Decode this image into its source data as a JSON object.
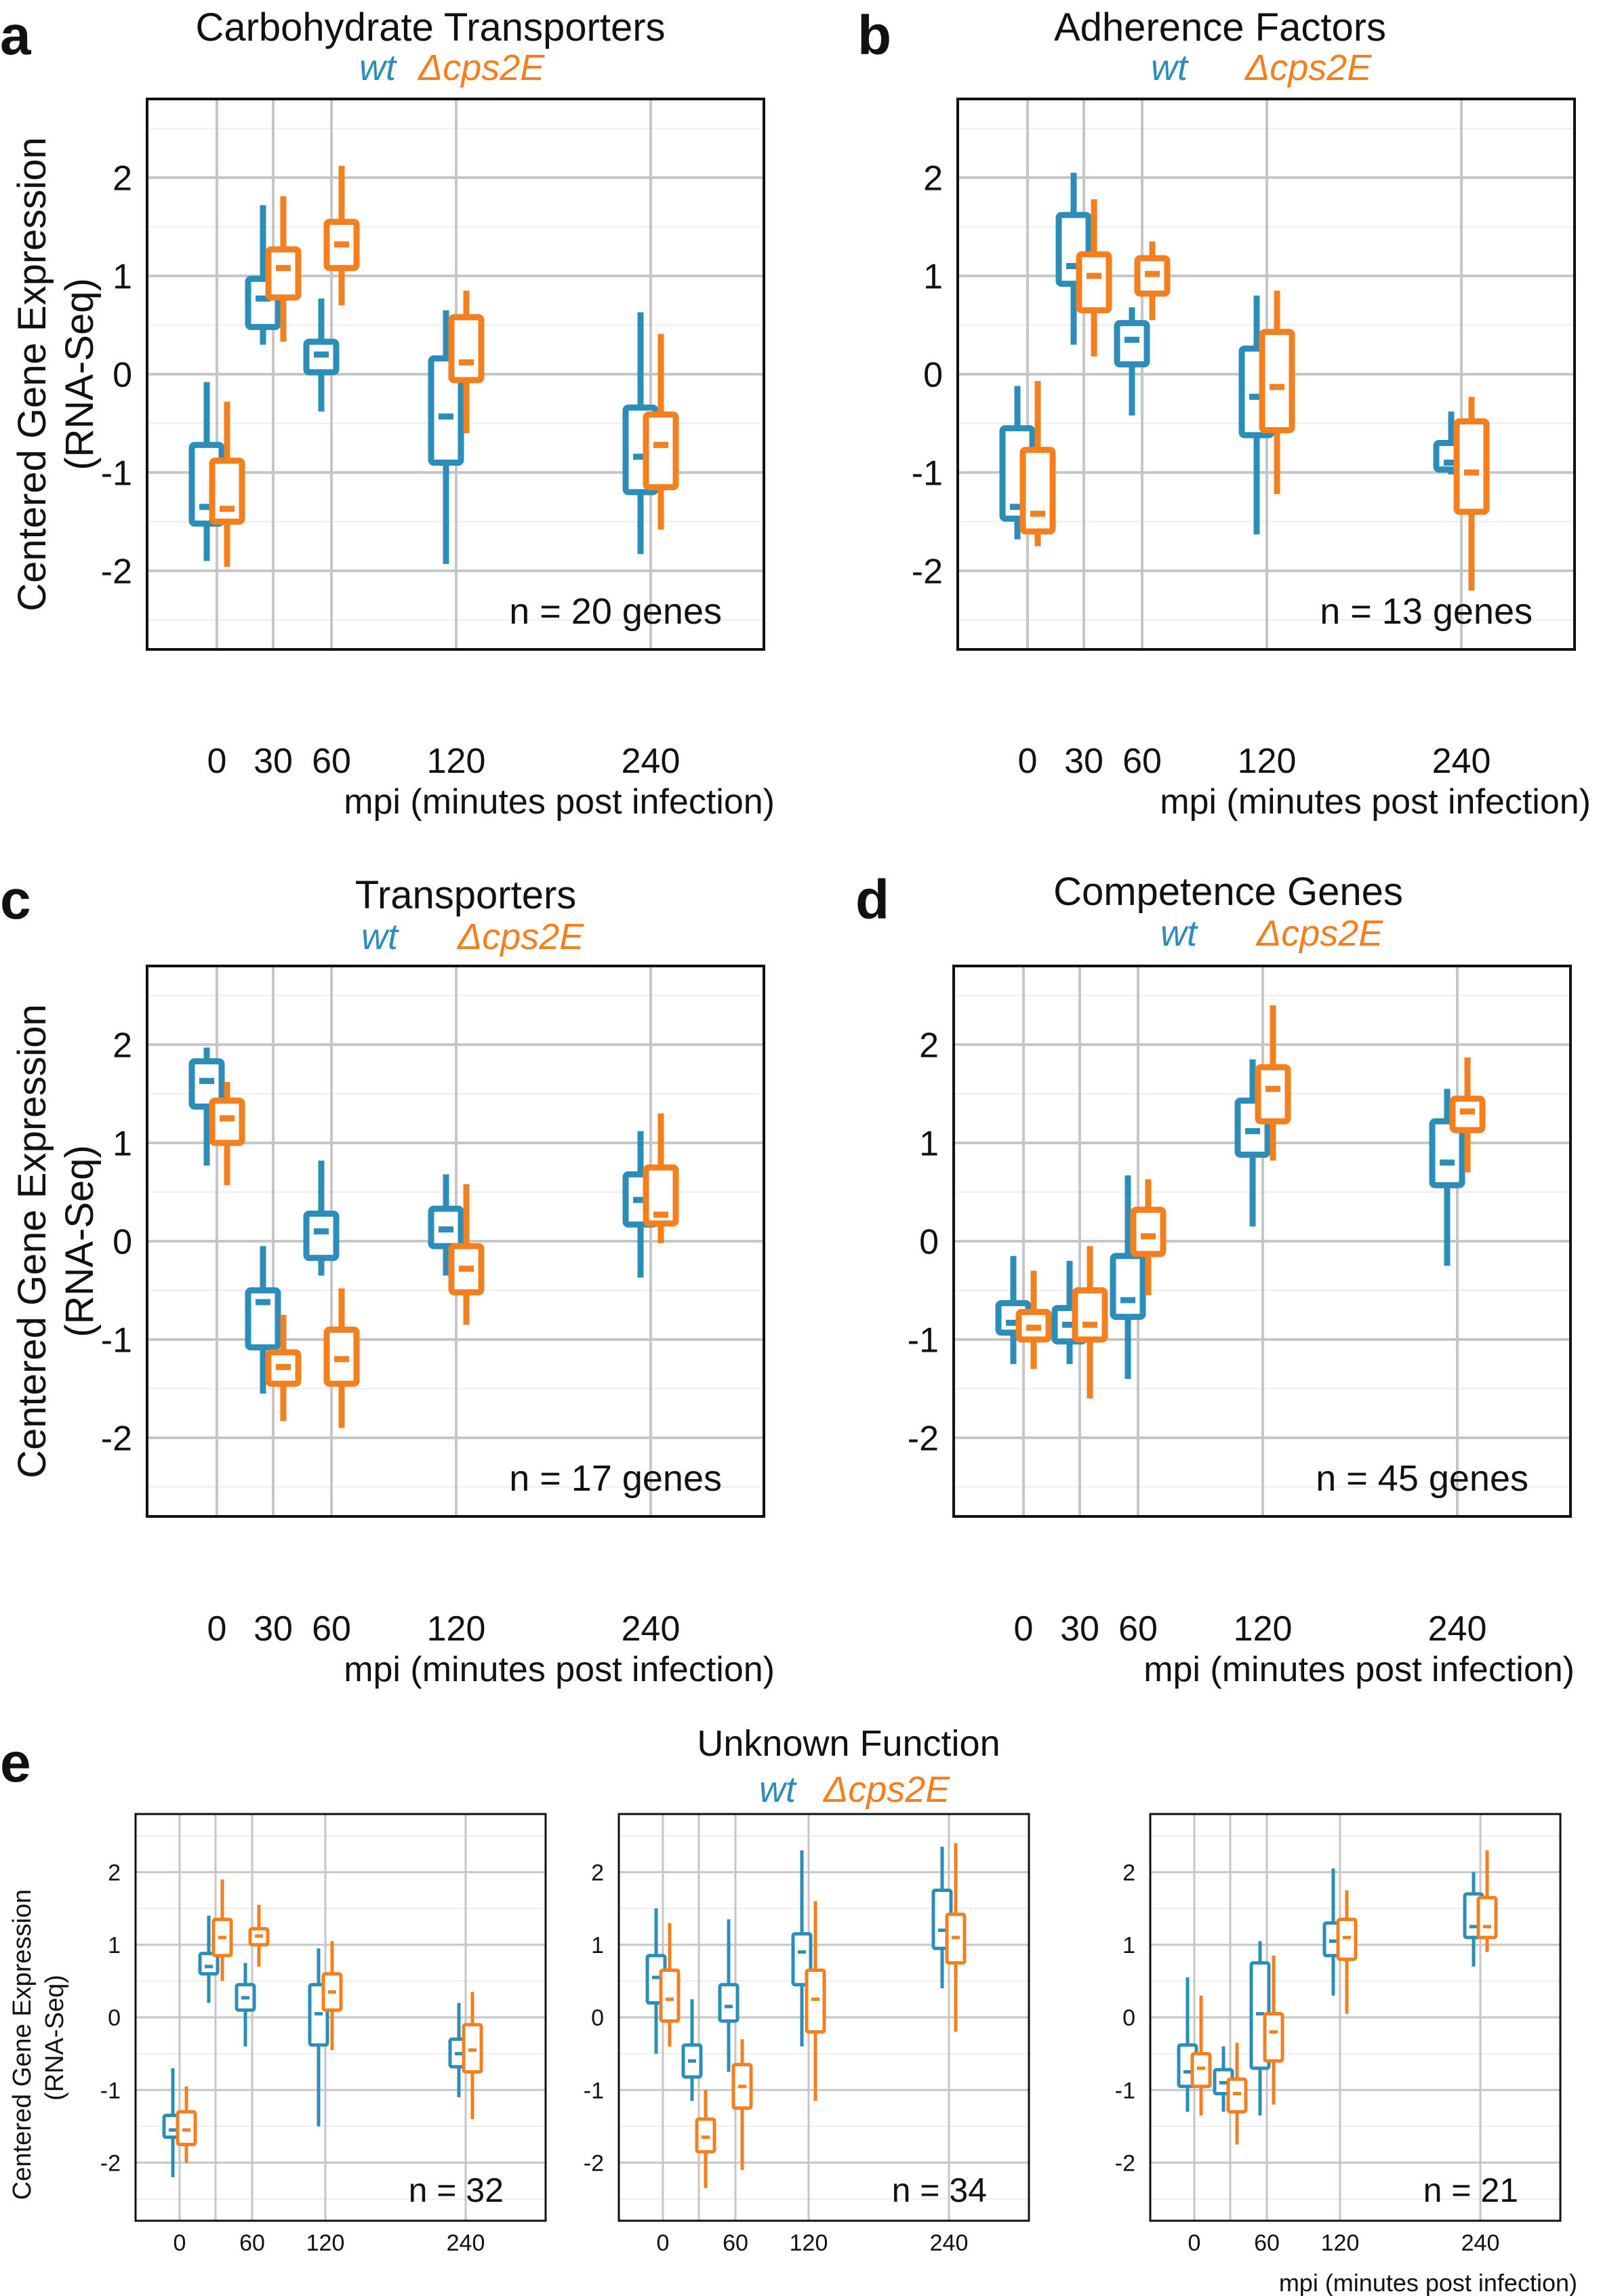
{
  "colors": {
    "wt": "#2b8db8",
    "mutant": "#f47f1f",
    "grid": "#c6c6c6",
    "gridMinor": "#eeeeee",
    "frame": "#111111",
    "text": "#111111"
  },
  "legend": {
    "wt": "wt",
    "mutant": "Δcps2E"
  },
  "common": {
    "ylabel": "Centered Gene Expression",
    "ylabel2": "(RNA-Seq)",
    "xlabel": "mpi (minutes post infection)",
    "yticks": [
      -2,
      -1,
      0,
      1,
      2
    ],
    "ylim": [
      -2.8,
      2.8
    ]
  },
  "panel_e": {
    "letter": "e",
    "title": "Unknown Function"
  },
  "chart_data": [
    {
      "id": "a",
      "type": "box",
      "letter": "a",
      "title": "Carbohydrate Transporters",
      "note": "n =  20 genes",
      "xticks": [
        "0",
        "30",
        "60",
        "120",
        "240"
      ],
      "series": [
        {
          "name": "wt",
          "groups": [
            {
              "x": "0",
              "min": -1.9,
              "q1": -1.52,
              "median": -1.35,
              "q3": -0.72,
              "max": -0.08
            },
            {
              "x": "30",
              "min": 0.3,
              "q1": 0.48,
              "median": 0.77,
              "q3": 0.97,
              "max": 1.72
            },
            {
              "x": "60",
              "min": -0.38,
              "q1": 0.02,
              "median": 0.2,
              "q3": 0.33,
              "max": 0.77
            },
            {
              "x": "120",
              "min": -1.93,
              "q1": -0.9,
              "median": -0.43,
              "q3": 0.16,
              "max": 0.65
            },
            {
              "x": "240",
              "min": -1.83,
              "q1": -1.2,
              "median": -0.84,
              "q3": -0.34,
              "max": 0.63
            }
          ]
        },
        {
          "name": "Δcps2E",
          "groups": [
            {
              "x": "0",
              "min": -1.96,
              "q1": -1.5,
              "median": -1.37,
              "q3": -0.88,
              "max": -0.28
            },
            {
              "x": "30",
              "min": 0.33,
              "q1": 0.78,
              "median": 1.08,
              "q3": 1.27,
              "max": 1.81
            },
            {
              "x": "60",
              "min": 0.7,
              "q1": 1.08,
              "median": 1.32,
              "q3": 1.55,
              "max": 2.12
            },
            {
              "x": "120",
              "min": -0.6,
              "q1": -0.06,
              "median": 0.12,
              "q3": 0.58,
              "max": 0.85
            },
            {
              "x": "240",
              "min": -1.58,
              "q1": -1.15,
              "median": -0.72,
              "q3": -0.41,
              "max": 0.41
            }
          ]
        }
      ]
    },
    {
      "id": "b",
      "type": "box",
      "letter": "b",
      "title": "Adherence Factors",
      "note": "n = 13 genes",
      "xticks": [
        "0",
        "30",
        "60",
        "120",
        "240"
      ],
      "series": [
        {
          "name": "wt",
          "groups": [
            {
              "x": "0",
              "min": -1.68,
              "q1": -1.47,
              "median": -1.35,
              "q3": -0.55,
              "max": -0.12
            },
            {
              "x": "30",
              "min": 0.3,
              "q1": 0.92,
              "median": 1.1,
              "q3": 1.62,
              "max": 2.05
            },
            {
              "x": "60",
              "min": -0.42,
              "q1": 0.1,
              "median": 0.35,
              "q3": 0.52,
              "max": 0.68
            },
            {
              "x": "120",
              "min": -1.63,
              "q1": -0.62,
              "median": -0.23,
              "q3": 0.26,
              "max": 0.8
            },
            {
              "x": "240",
              "min": -1.02,
              "q1": -0.97,
              "median": -0.9,
              "q3": -0.7,
              "max": -0.38
            }
          ]
        },
        {
          "name": "Δcps2E",
          "groups": [
            {
              "x": "0",
              "min": -1.75,
              "q1": -1.6,
              "median": -1.42,
              "q3": -0.77,
              "max": -0.07
            },
            {
              "x": "30",
              "min": 0.18,
              "q1": 0.65,
              "median": 1.0,
              "q3": 1.22,
              "max": 1.78
            },
            {
              "x": "60",
              "min": 0.55,
              "q1": 0.82,
              "median": 1.02,
              "q3": 1.18,
              "max": 1.35
            },
            {
              "x": "120",
              "min": -1.22,
              "q1": -0.57,
              "median": -0.13,
              "q3": 0.43,
              "max": 0.85
            },
            {
              "x": "240",
              "min": -2.2,
              "q1": -1.4,
              "median": -1.0,
              "q3": -0.48,
              "max": -0.23
            }
          ]
        }
      ]
    },
    {
      "id": "c",
      "type": "box",
      "letter": "c",
      "title": "Transporters",
      "note": "n =  17 genes",
      "xticks": [
        "0",
        "30",
        "60",
        "120",
        "240"
      ],
      "series": [
        {
          "name": "wt",
          "groups": [
            {
              "x": "0",
              "min": 0.77,
              "q1": 1.37,
              "median": 1.63,
              "q3": 1.83,
              "max": 1.97
            },
            {
              "x": "30",
              "min": -1.55,
              "q1": -1.08,
              "median": -0.62,
              "q3": -0.5,
              "max": -0.05
            },
            {
              "x": "60",
              "min": -0.35,
              "q1": -0.17,
              "median": 0.1,
              "q3": 0.28,
              "max": 0.82
            },
            {
              "x": "120",
              "min": -0.35,
              "q1": -0.05,
              "median": 0.12,
              "q3": 0.33,
              "max": 0.68
            },
            {
              "x": "240",
              "min": -0.37,
              "q1": 0.17,
              "median": 0.42,
              "q3": 0.68,
              "max": 1.12
            }
          ]
        },
        {
          "name": "Δcps2E",
          "groups": [
            {
              "x": "0",
              "min": 0.57,
              "q1": 1.0,
              "median": 1.25,
              "q3": 1.43,
              "max": 1.62
            },
            {
              "x": "30",
              "min": -1.83,
              "q1": -1.45,
              "median": -1.28,
              "q3": -1.13,
              "max": -0.75
            },
            {
              "x": "60",
              "min": -1.9,
              "q1": -1.45,
              "median": -1.2,
              "q3": -0.9,
              "max": -0.48
            },
            {
              "x": "120",
              "min": -0.85,
              "q1": -0.52,
              "median": -0.28,
              "q3": -0.05,
              "max": 0.58
            },
            {
              "x": "240",
              "min": -0.02,
              "q1": 0.18,
              "median": 0.27,
              "q3": 0.75,
              "max": 1.3
            }
          ]
        }
      ]
    },
    {
      "id": "d",
      "type": "box",
      "letter": "d",
      "title": "Competence Genes",
      "note": "n =  45 genes",
      "xticks": [
        "0",
        "30",
        "60",
        "120",
        "240"
      ],
      "series": [
        {
          "name": "wt",
          "groups": [
            {
              "x": "0",
              "min": -1.25,
              "q1": -0.93,
              "median": -0.83,
              "q3": -0.63,
              "max": -0.15
            },
            {
              "x": "30",
              "min": -1.25,
              "q1": -1.02,
              "median": -0.85,
              "q3": -0.68,
              "max": -0.2
            },
            {
              "x": "60",
              "min": -1.4,
              "q1": -0.77,
              "median": -0.6,
              "q3": -0.15,
              "max": 0.67
            },
            {
              "x": "120",
              "min": 0.15,
              "q1": 0.88,
              "median": 1.12,
              "q3": 1.43,
              "max": 1.85
            },
            {
              "x": "240",
              "min": -0.25,
              "q1": 0.57,
              "median": 0.8,
              "q3": 1.22,
              "max": 1.55
            }
          ]
        },
        {
          "name": "Δcps2E",
          "groups": [
            {
              "x": "0",
              "min": -1.3,
              "q1": -1.0,
              "median": -0.88,
              "q3": -0.72,
              "max": -0.3
            },
            {
              "x": "30",
              "min": -1.6,
              "q1": -1.0,
              "median": -0.85,
              "q3": -0.5,
              "max": -0.05
            },
            {
              "x": "60",
              "min": -0.55,
              "q1": -0.13,
              "median": 0.05,
              "q3": 0.32,
              "max": 0.63
            },
            {
              "x": "120",
              "min": 0.82,
              "q1": 1.22,
              "median": 1.55,
              "q3": 1.77,
              "max": 2.4
            },
            {
              "x": "240",
              "min": 0.7,
              "q1": 1.13,
              "median": 1.32,
              "q3": 1.45,
              "max": 1.87
            }
          ]
        }
      ]
    },
    {
      "id": "e1",
      "type": "box",
      "title": "",
      "note": "n = 32",
      "xticks": [
        "0",
        "60",
        "120",
        "240"
      ],
      "series": [
        {
          "name": "wt",
          "groups": [
            {
              "x": "0",
              "min": -2.2,
              "q1": -1.65,
              "median": -1.55,
              "q3": -1.35,
              "max": -0.7
            },
            {
              "x": "30",
              "min": 0.2,
              "q1": 0.6,
              "median": 0.7,
              "q3": 0.88,
              "max": 1.4
            },
            {
              "x": "60",
              "min": -0.4,
              "q1": 0.1,
              "median": 0.27,
              "q3": 0.45,
              "max": 0.75
            },
            {
              "x": "120",
              "min": -1.5,
              "q1": -0.38,
              "median": 0.05,
              "q3": 0.45,
              "max": 0.95
            },
            {
              "x": "240",
              "min": -1.1,
              "q1": -0.68,
              "median": -0.5,
              "q3": -0.3,
              "max": 0.2
            }
          ]
        },
        {
          "name": "Δcps2E",
          "groups": [
            {
              "x": "0",
              "min": -2.0,
              "q1": -1.75,
              "median": -1.55,
              "q3": -1.3,
              "max": -0.95
            },
            {
              "x": "30",
              "min": 0.5,
              "q1": 0.85,
              "median": 1.1,
              "q3": 1.35,
              "max": 1.9
            },
            {
              "x": "60",
              "min": 0.7,
              "q1": 1.0,
              "median": 1.12,
              "q3": 1.22,
              "max": 1.55
            },
            {
              "x": "120",
              "min": -0.45,
              "q1": 0.1,
              "median": 0.35,
              "q3": 0.6,
              "max": 1.05
            },
            {
              "x": "240",
              "min": -1.4,
              "q1": -0.75,
              "median": -0.45,
              "q3": -0.1,
              "max": 0.35
            }
          ]
        }
      ]
    },
    {
      "id": "e2",
      "type": "box",
      "title": "",
      "note": "n = 34",
      "xticks": [
        "0",
        "60",
        "120",
        "240"
      ],
      "series": [
        {
          "name": "wt",
          "groups": [
            {
              "x": "0",
              "min": -0.5,
              "q1": 0.2,
              "median": 0.55,
              "q3": 0.85,
              "max": 1.5
            },
            {
              "x": "30",
              "min": -1.15,
              "q1": -0.82,
              "median": -0.6,
              "q3": -0.38,
              "max": 0.25
            },
            {
              "x": "60",
              "min": -0.75,
              "q1": -0.05,
              "median": 0.15,
              "q3": 0.45,
              "max": 1.35
            },
            {
              "x": "120",
              "min": -0.4,
              "q1": 0.45,
              "median": 0.9,
              "q3": 1.15,
              "max": 2.3
            },
            {
              "x": "240",
              "min": 0.4,
              "q1": 0.95,
              "median": 1.2,
              "q3": 1.75,
              "max": 2.35
            }
          ]
        },
        {
          "name": "Δcps2E",
          "groups": [
            {
              "x": "0",
              "min": -0.4,
              "q1": -0.05,
              "median": 0.25,
              "q3": 0.65,
              "max": 1.3
            },
            {
              "x": "30",
              "min": -2.35,
              "q1": -1.85,
              "median": -1.65,
              "q3": -1.4,
              "max": -1.0
            },
            {
              "x": "60",
              "min": -2.1,
              "q1": -1.25,
              "median": -0.95,
              "q3": -0.65,
              "max": -0.3
            },
            {
              "x": "120",
              "min": -1.15,
              "q1": -0.2,
              "median": 0.25,
              "q3": 0.65,
              "max": 1.6
            },
            {
              "x": "240",
              "min": -0.2,
              "q1": 0.75,
              "median": 1.1,
              "q3": 1.42,
              "max": 2.4
            }
          ]
        }
      ]
    },
    {
      "id": "e3",
      "type": "box",
      "title": "",
      "note": "n = 21",
      "xlabel": "mpi (minutes post infection)",
      "xticks": [
        "0",
        "60",
        "120",
        "240"
      ],
      "series": [
        {
          "name": "wt",
          "groups": [
            {
              "x": "0",
              "min": -1.3,
              "q1": -0.95,
              "median": -0.75,
              "q3": -0.38,
              "max": 0.55
            },
            {
              "x": "30",
              "min": -1.3,
              "q1": -1.05,
              "median": -0.9,
              "q3": -0.72,
              "max": -0.4
            },
            {
              "x": "60",
              "min": -1.35,
              "q1": -0.7,
              "median": 0.05,
              "q3": 0.75,
              "max": 1.05
            },
            {
              "x": "120",
              "min": 0.3,
              "q1": 0.85,
              "median": 1.05,
              "q3": 1.3,
              "max": 2.05
            },
            {
              "x": "240",
              "min": 0.7,
              "q1": 1.1,
              "median": 1.25,
              "q3": 1.7,
              "max": 2.0
            }
          ]
        },
        {
          "name": "Δcps2E",
          "groups": [
            {
              "x": "0",
              "min": -1.35,
              "q1": -0.95,
              "median": -0.7,
              "q3": -0.5,
              "max": 0.3
            },
            {
              "x": "30",
              "min": -1.75,
              "q1": -1.3,
              "median": -1.05,
              "q3": -0.85,
              "max": -0.35
            },
            {
              "x": "60",
              "min": -1.2,
              "q1": -0.6,
              "median": -0.2,
              "q3": 0.05,
              "max": 0.85
            },
            {
              "x": "120",
              "min": 0.05,
              "q1": 0.8,
              "median": 1.1,
              "q3": 1.35,
              "max": 1.75
            },
            {
              "x": "240",
              "min": 0.9,
              "q1": 1.1,
              "median": 1.25,
              "q3": 1.65,
              "max": 2.3
            }
          ]
        }
      ]
    }
  ]
}
